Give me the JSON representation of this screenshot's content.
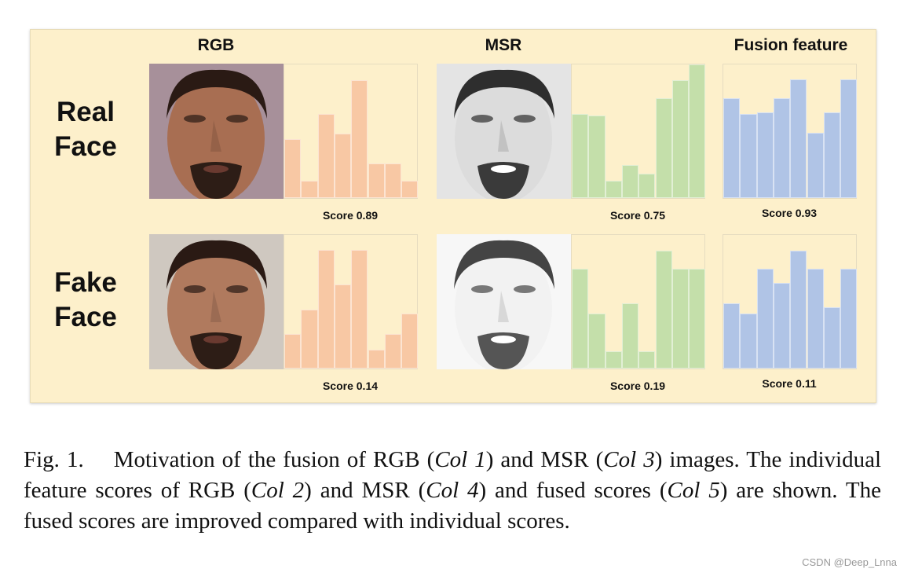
{
  "figure": {
    "column_titles": [
      "RGB",
      "MSR",
      "Fusion feature"
    ],
    "rows": [
      {
        "label_line1": "Real",
        "label_line2": "Face",
        "rgb_score": "Score 0.89",
        "msr_score": "Score 0.75",
        "fusion_score": "Score 0.93",
        "rgb_hist": [
          0.44,
          0.13,
          0.63,
          0.48,
          0.88,
          0.26,
          0.26,
          0.13
        ],
        "msr_hist": [
          0.63,
          0.62,
          0.13,
          0.25,
          0.18,
          0.75,
          0.88,
          1.0
        ],
        "fusion_hist": [
          0.75,
          0.63,
          0.64,
          0.75,
          0.89,
          0.49,
          0.64,
          0.89
        ]
      },
      {
        "label_line1": "Fake",
        "label_line2": "Face",
        "rgb_score": "Score 0.14",
        "msr_score": "Score 0.19",
        "fusion_score": "Score 0.11",
        "rgb_hist": [
          0.26,
          0.44,
          0.89,
          0.63,
          0.89,
          0.14,
          0.26,
          0.41
        ],
        "msr_hist": [
          0.75,
          0.41,
          0.13,
          0.49,
          0.13,
          0.88,
          0.75,
          0.75
        ],
        "fusion_hist": [
          0.49,
          0.41,
          0.75,
          0.64,
          0.88,
          0.75,
          0.46,
          0.75
        ]
      }
    ],
    "colors": {
      "panel": "#fdf0cb",
      "rgb": "#f8c8a4",
      "msr": "#c4dfaa",
      "fusion": "#b0c4e6"
    }
  },
  "caption": {
    "prefix": "Fig. 1.  Motivation of the fusion of RGB (",
    "c1": "Col 1",
    "t1": ") and MSR (",
    "c3": "Col 3",
    "t2": ") images. The individual feature scores of RGB (",
    "c2": "Col 2",
    "t3": ") and MSR (",
    "c4": "Col 4",
    "t4": ") and fused scores (",
    "c5": "Col 5",
    "t5": ") are shown. The fused scores are improved compared with individual scores."
  },
  "watermark": "CSDN @Deep_Lnna"
}
